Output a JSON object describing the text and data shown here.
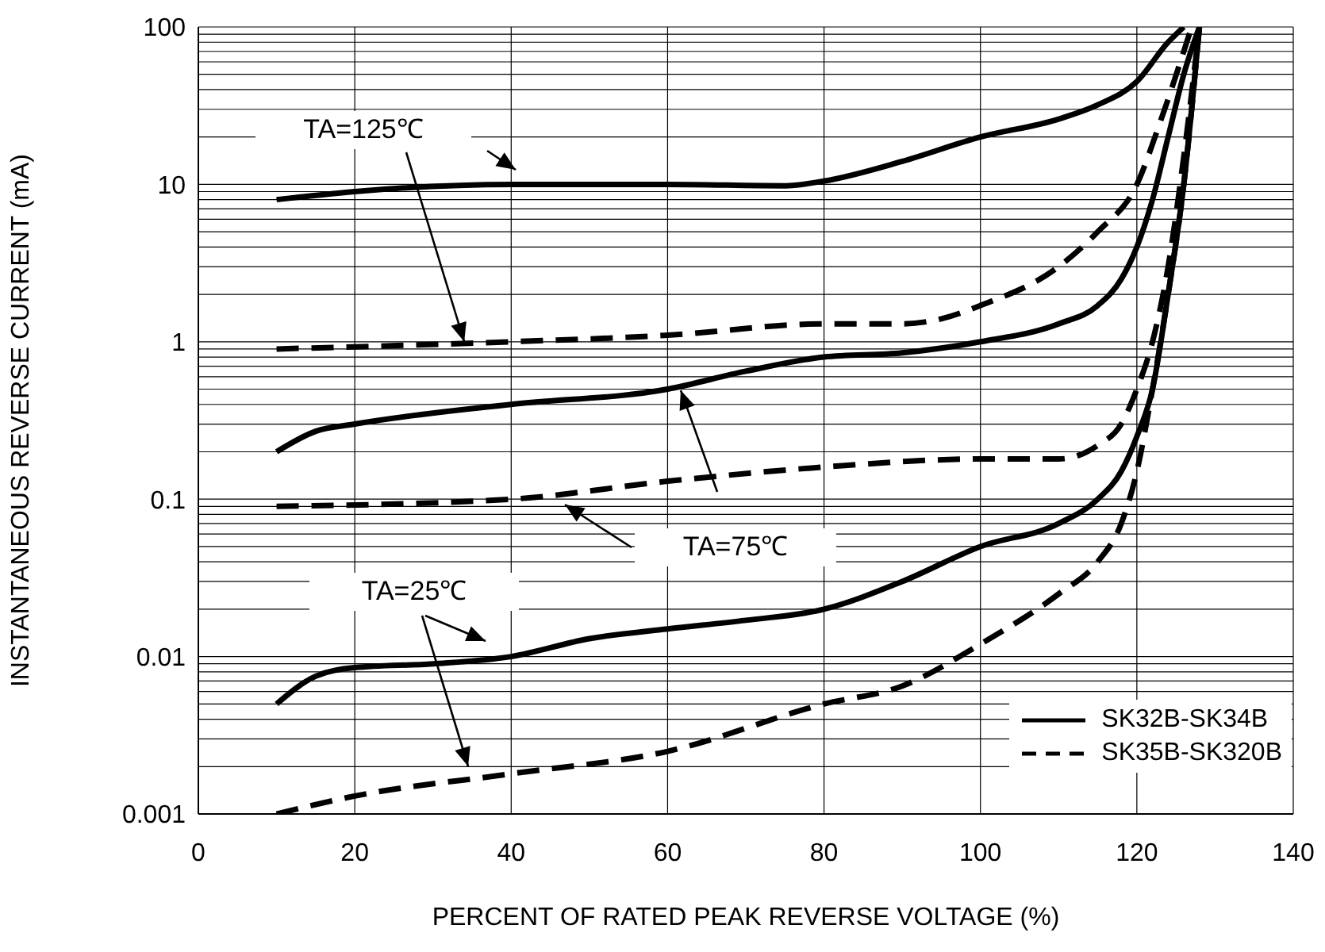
{
  "chart_data": {
    "type": "line",
    "xlabel": "PERCENT OF RATED PEAK REVERSE VOLTAGE (%)",
    "ylabel": "INSTANTANEOUS REVERSE CURRENT (mA)",
    "log": "y",
    "grid": true,
    "legend": "bottom right",
    "xlim": [
      0,
      140
    ],
    "xticks": [
      0,
      20,
      40,
      60,
      80,
      100,
      120,
      140
    ],
    "ylim": [
      0.001,
      100
    ],
    "yticks": [
      0.001,
      0.01,
      0.1,
      1,
      10,
      100
    ],
    "annotations": [
      {
        "text": "TA=125℃",
        "x": 34,
        "y": 1
      },
      "TA=75℃",
      "TA=25℃"
    ],
    "series": [
      {
        "name": "SK32B-SK34B",
        "color": "#000000",
        "line_style": "solid",
        "x": [
          10,
          20,
          40,
          60,
          75,
          80,
          90,
          100,
          110,
          115,
          120,
          124,
          126
        ],
        "values": [
          8,
          9,
          10,
          10,
          9.8,
          10.5,
          14,
          20,
          26,
          32,
          45,
          80,
          100
        ]
      },
      {
        "name": "SK35B-SK320B",
        "color": "#000000",
        "line_style": "dashed",
        "x": [
          10,
          40,
          60,
          80,
          90,
          95,
          100,
          110,
          115,
          120,
          123,
          126,
          127
        ],
        "values": [
          0.9,
          1.0,
          1.1,
          1.3,
          1.3,
          1.4,
          1.7,
          3,
          5,
          10,
          25,
          70,
          100
        ]
      },
      {
        "color": "#000000",
        "line_style": "solid",
        "x": [
          10,
          15,
          20,
          40,
          60,
          70,
          80,
          90,
          100,
          110,
          115,
          118,
          120,
          122,
          124,
          126,
          128
        ],
        "values": [
          0.2,
          0.27,
          0.3,
          0.4,
          0.5,
          0.65,
          0.8,
          0.85,
          1.0,
          1.3,
          1.7,
          2.5,
          4,
          8,
          20,
          50,
          100
        ]
      },
      {
        "color": "#000000",
        "line_style": "dashed",
        "x": [
          10,
          40,
          60,
          80,
          100,
          110,
          115,
          118,
          120,
          122,
          124,
          126,
          128
        ],
        "values": [
          0.09,
          0.1,
          0.13,
          0.16,
          0.18,
          0.18,
          0.22,
          0.3,
          0.5,
          1,
          3,
          15,
          100
        ]
      },
      {
        "color": "#000000",
        "line_style": "solid",
        "x": [
          10,
          15,
          20,
          30,
          40,
          50,
          60,
          70,
          80,
          90,
          100,
          110,
          115,
          118,
          120,
          122,
          124,
          126,
          128
        ],
        "values": [
          0.005,
          0.0075,
          0.0085,
          0.009,
          0.01,
          0.013,
          0.015,
          0.017,
          0.02,
          0.03,
          0.05,
          0.07,
          0.1,
          0.15,
          0.25,
          0.5,
          2,
          10,
          100
        ]
      },
      {
        "color": "#000000",
        "line_style": "dashed",
        "x": [
          10,
          20,
          40,
          60,
          80,
          90,
          100,
          110,
          115,
          118,
          120,
          122,
          124,
          126,
          128
        ],
        "values": [
          0.001,
          0.0013,
          0.0018,
          0.0025,
          0.005,
          0.0065,
          0.012,
          0.025,
          0.04,
          0.07,
          0.15,
          0.5,
          2,
          10,
          100
        ]
      }
    ]
  }
}
